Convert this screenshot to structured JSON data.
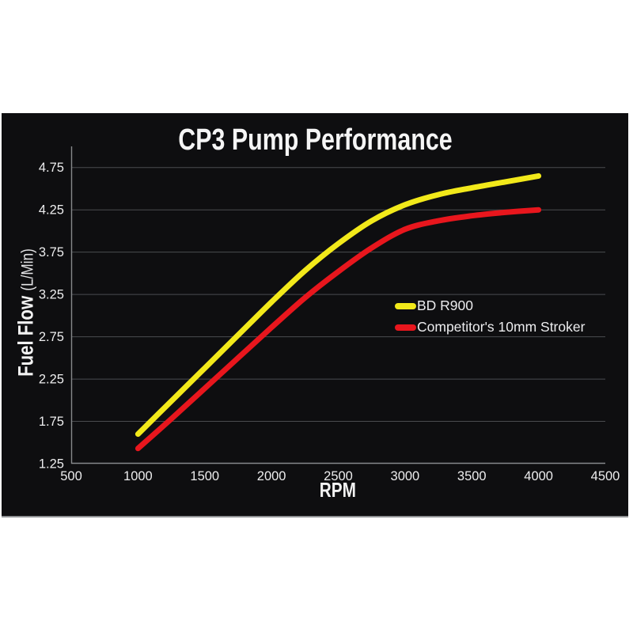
{
  "chart": {
    "background_color": "#0e0e10",
    "page_background": "#ffffff",
    "text_color": "#ededee",
    "grid_color": "#4a4c4f",
    "axis_color": "#87898c"
  },
  "chart_data": {
    "type": "line",
    "title": "CP3 Pump Performance",
    "xlabel": "RPM",
    "ylabel": "Fuel Flow (L/Min)",
    "ylabel_main": "Fuel Flow",
    "ylabel_units": "(L/Min)",
    "xlim": [
      500,
      4500
    ],
    "ylim": [
      1.25,
      5.0
    ],
    "x_ticks": [
      500,
      1000,
      1500,
      2000,
      2500,
      3000,
      3500,
      4000,
      4500
    ],
    "y_ticks": [
      1.25,
      1.75,
      2.25,
      2.75,
      3.25,
      3.75,
      4.25,
      4.75
    ],
    "grid": "horizontal",
    "legend_position": "inside-right",
    "series": [
      {
        "name": "BD R900",
        "color": "#f2e91a",
        "x": [
          1000,
          1250,
          1500,
          1750,
          2000,
          2250,
          2500,
          2750,
          3000,
          3250,
          3500,
          3750,
          4000
        ],
        "y": [
          1.6,
          1.99,
          2.38,
          2.77,
          3.16,
          3.53,
          3.85,
          4.12,
          4.31,
          4.43,
          4.51,
          4.58,
          4.65
        ]
      },
      {
        "name": "Competitor's 10mm Stroker",
        "color": "#e8161d",
        "x": [
          1000,
          1250,
          1500,
          1750,
          2000,
          2250,
          2500,
          2750,
          3000,
          3250,
          3500,
          3750,
          4000
        ],
        "y": [
          1.43,
          1.78,
          2.14,
          2.5,
          2.86,
          3.21,
          3.52,
          3.8,
          4.02,
          4.12,
          4.18,
          4.22,
          4.25
        ]
      }
    ]
  }
}
